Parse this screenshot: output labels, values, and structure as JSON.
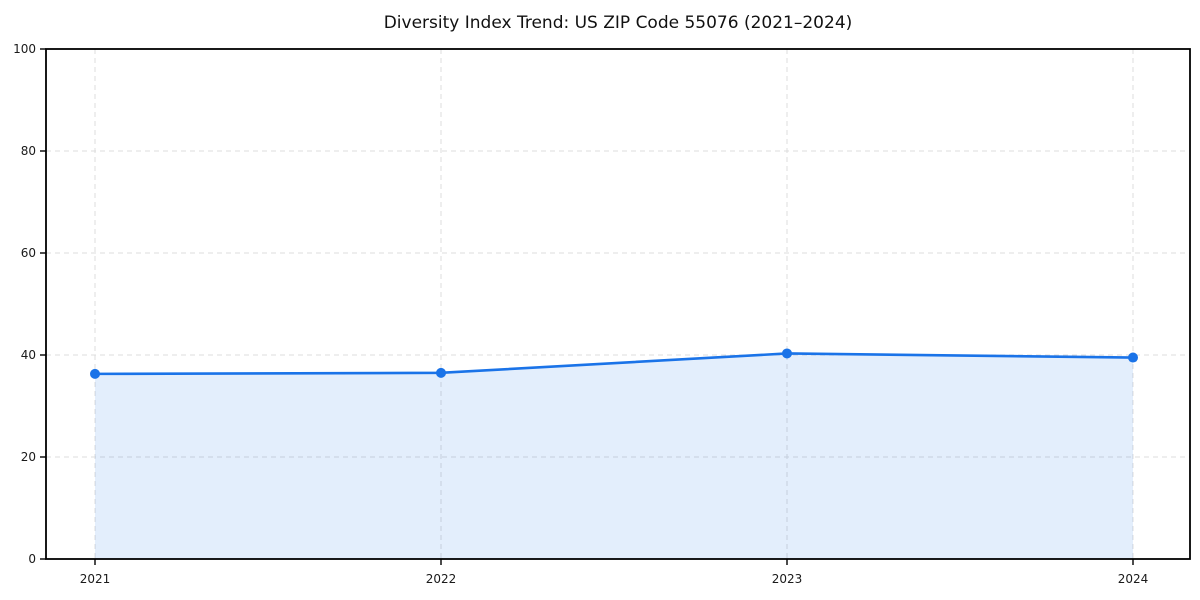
{
  "title": "Diversity Index Trend: US ZIP Code 55076 (2021–2024)",
  "colors": {
    "line": "#1a73e8",
    "marker": "#1a73e8",
    "area_fill": "#1a73e8",
    "area_fill_opacity": 0.12,
    "grid": "#dcdcdc",
    "spine": "#000000",
    "tick_text": "#1a1a1a",
    "background": "#ffffff"
  },
  "chart_data": {
    "type": "line",
    "title": "Diversity Index Trend: US ZIP Code 55076 (2021–2024)",
    "categories": [
      "2021",
      "2022",
      "2023",
      "2024"
    ],
    "series": [
      {
        "name": "Diversity Index",
        "values": [
          36.3,
          36.5,
          40.3,
          39.5
        ]
      }
    ],
    "xlabel": "",
    "ylabel": "",
    "ylim": [
      0,
      100
    ],
    "yticks": [
      0,
      20,
      40,
      60,
      80,
      100
    ],
    "grid": true,
    "grid_style": "dashed",
    "legend": "none",
    "markers": true,
    "area_fill": true
  }
}
